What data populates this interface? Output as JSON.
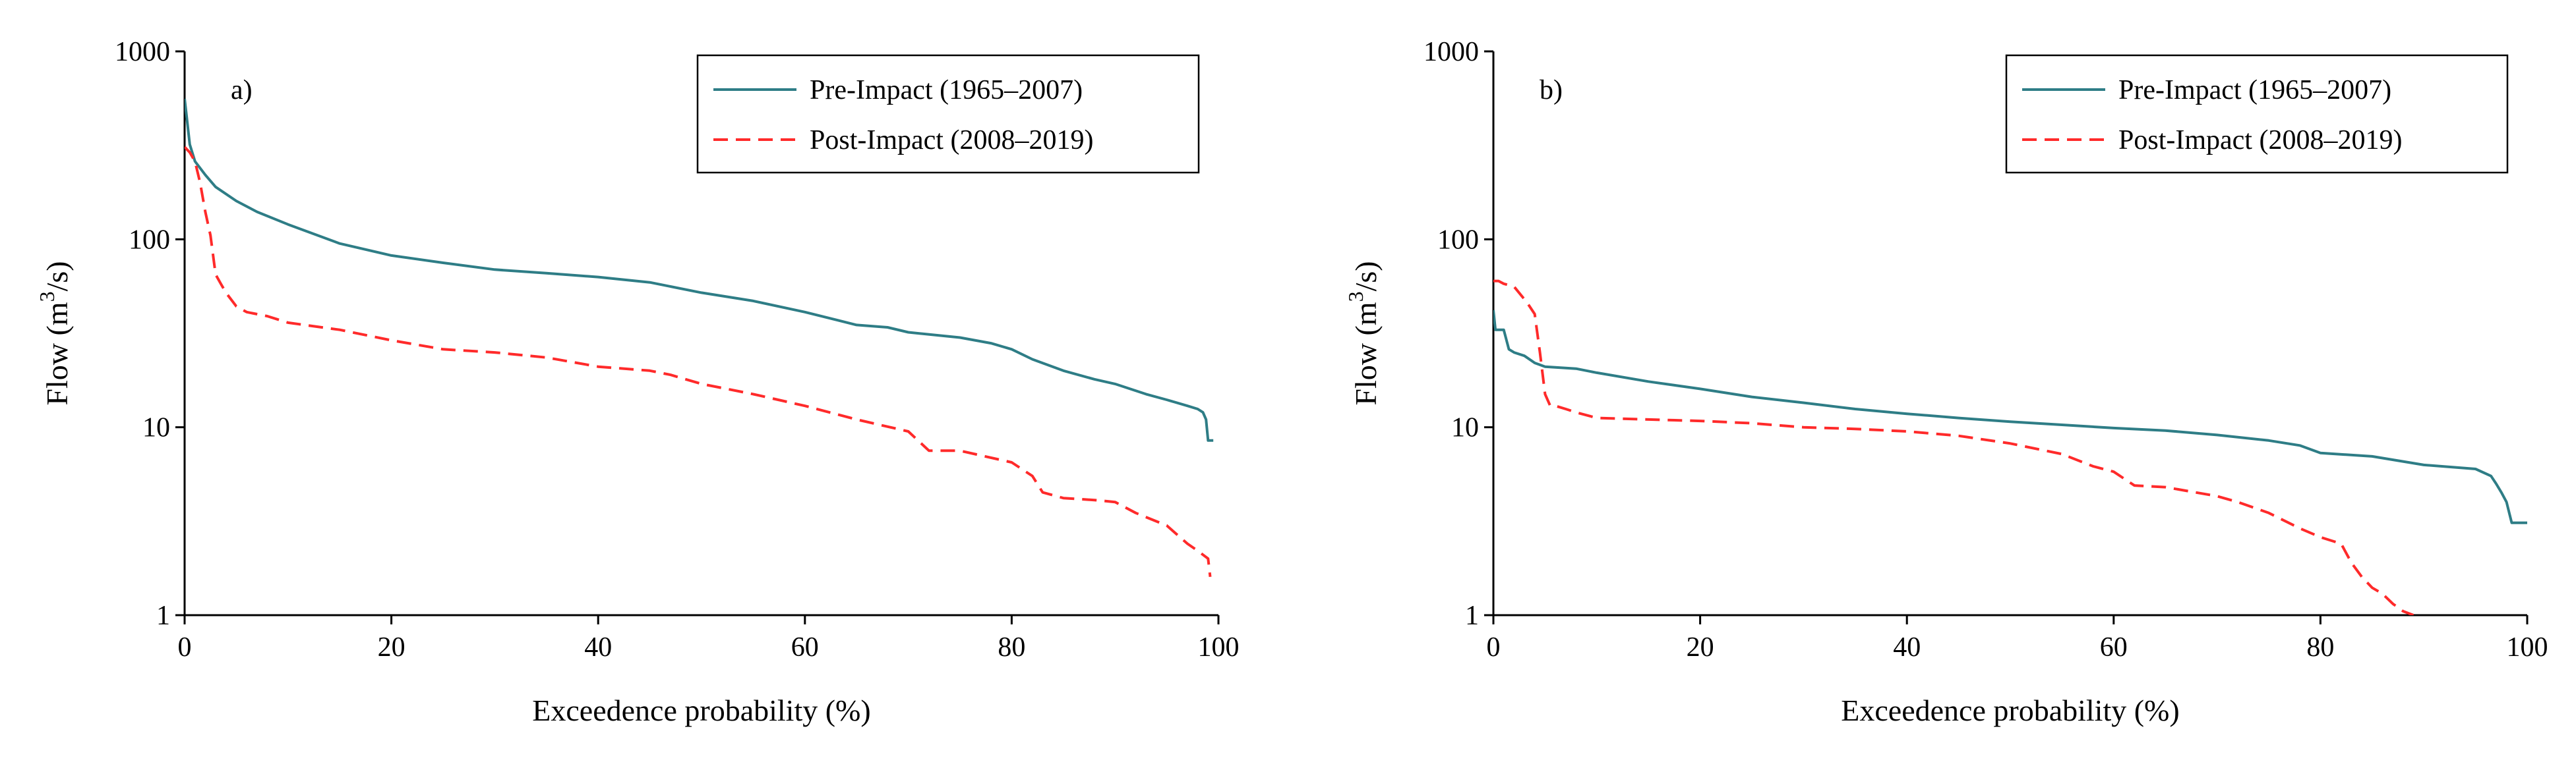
{
  "colors": {
    "pre": "#2e7d86",
    "post": "#ff2a2a",
    "axis": "#000000"
  },
  "chart_data": [
    {
      "type": "line",
      "panel_label": "a)",
      "title": "",
      "xlabel": "Exceedence probability (%)",
      "ylabel_main": "Flow (m",
      "ylabel_sup": "3",
      "ylabel_end": "/s)",
      "xlim": [
        0,
        100
      ],
      "ylim": [
        1,
        1000
      ],
      "yscale": "log",
      "xticks": [
        0,
        20,
        40,
        60,
        80,
        100
      ],
      "xtick_labels": [
        "0",
        "20",
        "40",
        "60",
        "80",
        "100"
      ],
      "yticks": [
        1,
        10,
        100,
        1000
      ],
      "ytick_labels": [
        "1",
        "10",
        "100",
        "1000"
      ],
      "legend": "top-right",
      "series": [
        {
          "name": "Pre-Impact (1965–2007)",
          "style": "solid",
          "x": [
            0,
            0.2,
            0.5,
            1,
            2,
            3,
            5,
            7,
            10,
            15,
            20,
            25,
            30,
            35,
            40,
            45,
            50,
            55,
            60,
            65,
            68,
            70,
            75,
            78,
            80,
            82,
            85,
            88,
            90,
            93,
            95,
            97,
            98,
            98.5,
            98.8,
            99,
            99.5
          ],
          "y": [
            560,
            450,
            320,
            260,
            220,
            190,
            160,
            140,
            120,
            95,
            82,
            75,
            69,
            66,
            63,
            59,
            52,
            47,
            41,
            35,
            34,
            32,
            30,
            28,
            26,
            23,
            20,
            18,
            17,
            15,
            14,
            13,
            12.5,
            12,
            11,
            8.5,
            8.5
          ]
        },
        {
          "name": "Post-Impact (2008–2019)",
          "style": "dashed",
          "x": [
            0,
            0.5,
            1,
            1.5,
            2,
            2.5,
            3,
            3.5,
            4,
            5,
            6,
            8,
            10,
            15,
            20,
            25,
            30,
            35,
            40,
            45,
            47,
            50,
            55,
            60,
            65,
            70,
            72,
            75,
            80,
            82,
            83,
            85,
            88,
            90,
            92,
            95,
            97,
            98,
            99,
            99.2
          ],
          "y": [
            310,
            290,
            260,
            200,
            140,
            105,
            65,
            58,
            52,
            44,
            41,
            39,
            36,
            33,
            29,
            26,
            25,
            23.5,
            21,
            20,
            19,
            17,
            15,
            13,
            11,
            9.5,
            7.5,
            7.5,
            6.5,
            5.5,
            4.5,
            4.2,
            4.1,
            4,
            3.5,
            3,
            2.4,
            2.2,
            2,
            1.6
          ]
        }
      ]
    },
    {
      "type": "line",
      "panel_label": "b)",
      "title": "",
      "xlabel": "Exceedence probability (%)",
      "ylabel_main": "Flow (m",
      "ylabel_sup": "3",
      "ylabel_end": "/s)",
      "xlim": [
        0,
        100
      ],
      "ylim": [
        1,
        1000
      ],
      "yscale": "log",
      "xticks": [
        0,
        20,
        40,
        60,
        80,
        100
      ],
      "xtick_labels": [
        "0",
        "20",
        "40",
        "60",
        "80",
        "100"
      ],
      "yticks": [
        1,
        10,
        100,
        1000
      ],
      "ytick_labels": [
        "1",
        "10",
        "100",
        "1000"
      ],
      "legend": "top-right",
      "series": [
        {
          "name": "Pre-Impact (1965–2007)",
          "style": "solid",
          "x": [
            0,
            0.2,
            0.5,
            1,
            1.5,
            2,
            3,
            4,
            5,
            8,
            10,
            15,
            20,
            25,
            30,
            35,
            40,
            45,
            50,
            55,
            60,
            65,
            70,
            75,
            78,
            80,
            85,
            90,
            95,
            96.5,
            97,
            97.5,
            98,
            98.5,
            99,
            100
          ],
          "y": [
            42,
            33,
            33,
            33,
            26,
            25,
            24,
            22,
            21,
            20.5,
            19.5,
            17.5,
            16,
            14.5,
            13.5,
            12.5,
            11.8,
            11.2,
            10.7,
            10.3,
            9.9,
            9.6,
            9.1,
            8.5,
            8,
            7.3,
            7,
            6.3,
            6,
            5.5,
            5,
            4.5,
            4,
            3.1,
            3.1,
            3.1
          ]
        },
        {
          "name": "Post-Impact (2008–2019)",
          "style": "dashed",
          "x": [
            0,
            0.5,
            1,
            2,
            3,
            3.5,
            4,
            4.5,
            5,
            5.5,
            6,
            7,
            8,
            10,
            15,
            20,
            25,
            30,
            35,
            40,
            45,
            50,
            55,
            58,
            60,
            62,
            65,
            70,
            72,
            75,
            78,
            80,
            82,
            83,
            84,
            85,
            86,
            87,
            88,
            89
          ],
          "y": [
            60,
            60,
            58,
            56,
            48,
            44,
            40,
            25,
            15,
            13,
            13,
            12.5,
            12,
            11.2,
            11,
            10.8,
            10.5,
            10,
            9.8,
            9.5,
            9,
            8.2,
            7.2,
            6.2,
            5.8,
            4.9,
            4.8,
            4.3,
            4,
            3.5,
            2.9,
            2.6,
            2.4,
            1.9,
            1.6,
            1.4,
            1.3,
            1.15,
            1.05,
            1
          ]
        }
      ]
    }
  ]
}
